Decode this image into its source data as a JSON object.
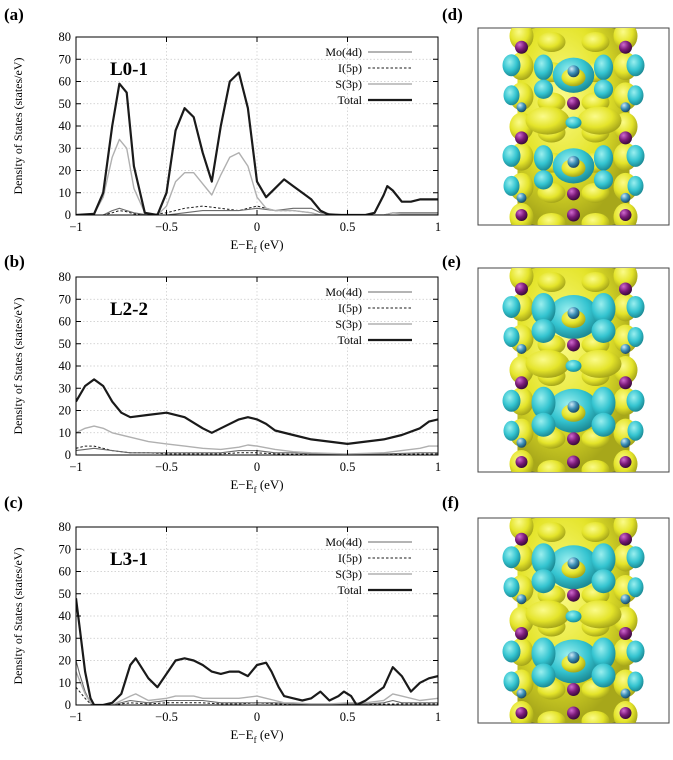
{
  "figure": {
    "shared": {
      "ylabel": "Density of States (states/eV)",
      "xlabel_main": "E−E",
      "xlabel_sub": "f",
      "xlabel_unit": " (eV)",
      "x_ticks": [
        "−1",
        "−0.5",
        "0",
        "0.5",
        "1"
      ],
      "y_ticks": [
        "0",
        "10",
        "20",
        "30",
        "40",
        "50",
        "60",
        "70",
        "80"
      ],
      "legend": [
        "Mo(4d)",
        "I(5p)",
        "S(3p)",
        "Total"
      ]
    },
    "panels": [
      {
        "letter": "(a)",
        "title": "L0-1"
      },
      {
        "letter": "(b)",
        "title": "L2-2"
      },
      {
        "letter": "(c)",
        "title": "L3-1"
      }
    ],
    "images": [
      {
        "letter": "(d)"
      },
      {
        "letter": "(e)"
      },
      {
        "letter": "(f)"
      }
    ],
    "colors": {
      "isosurface_yellow": "#ecec2a",
      "isosurface_cyan": "#3cc6d2",
      "atom_purple": "#7a1a78",
      "grid": "#c8c8c8"
    }
  },
  "chart_data": [
    {
      "type": "line",
      "title": "L0-1",
      "xlabel": "E−Ef (eV)",
      "ylabel": "Density of States (states/eV)",
      "xlim": [
        -1,
        1
      ],
      "ylim": [
        0,
        80
      ],
      "grid": true,
      "legend_position": "top-right",
      "series": [
        {
          "name": "Total",
          "x": [
            -1,
            -0.9,
            -0.85,
            -0.8,
            -0.76,
            -0.72,
            -0.68,
            -0.62,
            -0.55,
            -0.5,
            -0.45,
            -0.4,
            -0.35,
            -0.3,
            -0.25,
            -0.2,
            -0.15,
            -0.1,
            -0.05,
            0,
            0.05,
            0.1,
            0.15,
            0.2,
            0.25,
            0.3,
            0.35,
            0.4,
            0.5,
            0.6,
            0.65,
            0.7,
            0.72,
            0.75,
            0.8,
            0.85,
            0.9,
            1
          ],
          "y": [
            0,
            0.5,
            10,
            40,
            59,
            55,
            22,
            1,
            0,
            10,
            38,
            48,
            44,
            28,
            15,
            40,
            60,
            64,
            48,
            15,
            8,
            12,
            16,
            13,
            10,
            7,
            2,
            0,
            0,
            0,
            1,
            9,
            13,
            11,
            6,
            6,
            7,
            7
          ]
        },
        {
          "name": "Mo(4d)",
          "x": [
            -1,
            -0.85,
            -0.8,
            -0.76,
            -0.72,
            -0.68,
            -0.6,
            -0.5,
            -0.4,
            -0.3,
            -0.2,
            -0.1,
            0,
            0.1,
            0.2,
            0.3,
            0.35,
            0.5,
            0.7,
            0.75,
            0.8,
            1
          ],
          "y": [
            0,
            0,
            2,
            3,
            2,
            1,
            0,
            0,
            1,
            2,
            2,
            2,
            3,
            2,
            3,
            3,
            1,
            0,
            0,
            1,
            1,
            1
          ]
        },
        {
          "name": "I(5p)",
          "x": [
            -1,
            -0.85,
            -0.8,
            -0.76,
            -0.72,
            -0.68,
            -0.6,
            -0.5,
            -0.4,
            -0.3,
            -0.2,
            -0.1,
            -0.05,
            0,
            0.05,
            0.1,
            0.2,
            0.3,
            0.35,
            0.5,
            1
          ],
          "y": [
            0,
            0,
            1,
            2,
            1.5,
            0.5,
            0,
            1,
            3,
            4,
            3,
            2,
            3,
            4,
            3,
            2,
            2,
            1,
            0,
            0,
            0
          ]
        },
        {
          "name": "S(3p)",
          "x": [
            -1,
            -0.9,
            -0.85,
            -0.8,
            -0.76,
            -0.72,
            -0.68,
            -0.62,
            -0.55,
            -0.5,
            -0.45,
            -0.4,
            -0.35,
            -0.3,
            -0.25,
            -0.2,
            -0.15,
            -0.1,
            -0.05,
            0,
            0.05,
            0.1,
            0.2,
            0.3,
            0.35,
            0.5,
            0.7,
            0.75,
            0.8,
            1
          ],
          "y": [
            0,
            0.5,
            8,
            26,
            34,
            30,
            12,
            1,
            0,
            4,
            15,
            19,
            19,
            14,
            9,
            18,
            26,
            28,
            22,
            8,
            3,
            2,
            2,
            1,
            0,
            0,
            0,
            1,
            0.5,
            0.5
          ]
        }
      ]
    },
    {
      "type": "line",
      "title": "L2-2",
      "xlabel": "E−Ef (eV)",
      "ylabel": "Density of States (states/eV)",
      "xlim": [
        -1,
        1
      ],
      "ylim": [
        0,
        80
      ],
      "grid": true,
      "legend_position": "top-right",
      "series": [
        {
          "name": "Total",
          "x": [
            -1,
            -0.95,
            -0.9,
            -0.85,
            -0.8,
            -0.75,
            -0.7,
            -0.6,
            -0.5,
            -0.4,
            -0.3,
            -0.25,
            -0.2,
            -0.1,
            -0.05,
            0,
            0.05,
            0.1,
            0.2,
            0.3,
            0.4,
            0.5,
            0.6,
            0.7,
            0.8,
            0.9,
            0.95,
            1
          ],
          "y": [
            24,
            31,
            34,
            31,
            24,
            19,
            17,
            18,
            19,
            17,
            12,
            10,
            12,
            16,
            17,
            16,
            14,
            11,
            9,
            7,
            6,
            5,
            6,
            7,
            9,
            12,
            15,
            16
          ]
        },
        {
          "name": "Mo(4d)",
          "x": [
            -1,
            -0.9,
            -0.8,
            -0.7,
            -0.6,
            -0.5,
            -0.4,
            -0.3,
            -0.2,
            -0.1,
            -0.05,
            0,
            0.1,
            0.2,
            0.3,
            0.5,
            0.7,
            0.9,
            1
          ],
          "y": [
            2,
            3,
            2,
            1,
            1,
            1,
            1,
            1,
            1,
            2,
            2,
            2,
            1,
            1,
            0.5,
            0.3,
            0.5,
            1,
            1
          ]
        },
        {
          "name": "I(5p)",
          "x": [
            -1,
            -0.95,
            -0.9,
            -0.85,
            -0.8,
            -0.7,
            -0.6,
            -0.5,
            -0.4,
            -0.3,
            -0.2,
            -0.1,
            0,
            0.1,
            0.2,
            0.5,
            0.8,
            1
          ],
          "y": [
            3,
            4,
            4,
            3,
            2,
            1,
            1,
            0.5,
            0.5,
            0.5,
            0.5,
            1,
            1,
            0.5,
            0.3,
            0.2,
            0.3,
            0.5
          ]
        },
        {
          "name": "S(3p)",
          "x": [
            -1,
            -0.95,
            -0.9,
            -0.85,
            -0.8,
            -0.7,
            -0.6,
            -0.5,
            -0.4,
            -0.3,
            -0.2,
            -0.1,
            -0.05,
            0,
            0.1,
            0.2,
            0.3,
            0.5,
            0.7,
            0.8,
            0.9,
            0.95,
            1
          ],
          "y": [
            10,
            12,
            13,
            12,
            10,
            8,
            6,
            5,
            4,
            3,
            2.5,
            3.5,
            4.5,
            4,
            2.5,
            1.5,
            1,
            0.5,
            1,
            2,
            3,
            4,
            4
          ]
        }
      ]
    },
    {
      "type": "line",
      "title": "L3-1",
      "xlabel": "E−Ef (eV)",
      "ylabel": "Density of States (states/eV)",
      "xlim": [
        -1,
        1
      ],
      "ylim": [
        0,
        80
      ],
      "grid": true,
      "legend_position": "top-right",
      "series": [
        {
          "name": "Total",
          "x": [
            -1,
            -0.98,
            -0.95,
            -0.92,
            -0.9,
            -0.85,
            -0.8,
            -0.75,
            -0.7,
            -0.67,
            -0.6,
            -0.55,
            -0.5,
            -0.45,
            -0.4,
            -0.35,
            -0.3,
            -0.25,
            -0.2,
            -0.15,
            -0.1,
            -0.05,
            0,
            0.05,
            0.08,
            0.12,
            0.15,
            0.2,
            0.25,
            0.3,
            0.35,
            0.4,
            0.45,
            0.48,
            0.52,
            0.55,
            0.6,
            0.65,
            0.7,
            0.75,
            0.8,
            0.85,
            0.9,
            0.95,
            1
          ],
          "y": [
            48,
            35,
            15,
            3,
            0,
            0,
            1,
            5,
            18,
            21,
            12,
            8,
            14,
            20,
            21,
            20,
            18,
            15,
            14,
            15,
            15,
            13,
            18,
            19,
            15,
            8,
            4,
            3,
            2,
            3,
            6,
            2,
            4,
            6,
            4,
            0,
            2,
            5,
            8,
            17,
            13,
            6,
            10,
            12,
            13
          ]
        },
        {
          "name": "Mo(4d)",
          "x": [
            -1,
            -0.98,
            -0.95,
            -0.92,
            -0.9,
            -0.8,
            -0.7,
            -0.6,
            -0.5,
            -0.4,
            -0.3,
            -0.2,
            -0.1,
            0,
            0.1,
            0.2,
            0.3,
            0.4,
            0.5,
            0.6,
            0.7,
            0.75,
            0.8,
            0.9,
            1
          ],
          "y": [
            20,
            14,
            6,
            1,
            0,
            0,
            2,
            1,
            2,
            2,
            2,
            1,
            1,
            1,
            1,
            0.5,
            0.5,
            0.5,
            0.5,
            0.5,
            1,
            2,
            1,
            1,
            1
          ]
        },
        {
          "name": "I(5p)",
          "x": [
            -1,
            -0.98,
            -0.95,
            -0.92,
            -0.9,
            -0.8,
            -0.7,
            -0.6,
            -0.5,
            -0.4,
            -0.3,
            -0.2,
            -0.1,
            0,
            0.1,
            0.2,
            0.4,
            0.6,
            0.8,
            1
          ],
          "y": [
            8,
            6,
            3,
            0.5,
            0,
            0,
            1,
            0.5,
            1,
            1,
            1,
            0.5,
            0.5,
            1,
            0.5,
            0.3,
            0.3,
            0.3,
            0.5,
            0.5
          ]
        },
        {
          "name": "S(3p)",
          "x": [
            -1,
            -0.98,
            -0.95,
            -0.92,
            -0.9,
            -0.8,
            -0.7,
            -0.67,
            -0.6,
            -0.5,
            -0.45,
            -0.4,
            -0.35,
            -0.3,
            -0.2,
            -0.1,
            0,
            0.05,
            0.1,
            0.15,
            0.2,
            0.3,
            0.4,
            0.5,
            0.6,
            0.7,
            0.75,
            0.8,
            0.9,
            1
          ],
          "y": [
            15,
            11,
            5,
            1,
            0,
            0,
            4,
            5,
            2,
            3,
            4,
            4,
            4,
            3,
            3,
            3,
            4,
            3,
            2,
            1,
            1,
            0.5,
            0.5,
            1,
            1,
            2,
            5,
            4,
            2,
            3
          ]
        }
      ]
    }
  ]
}
